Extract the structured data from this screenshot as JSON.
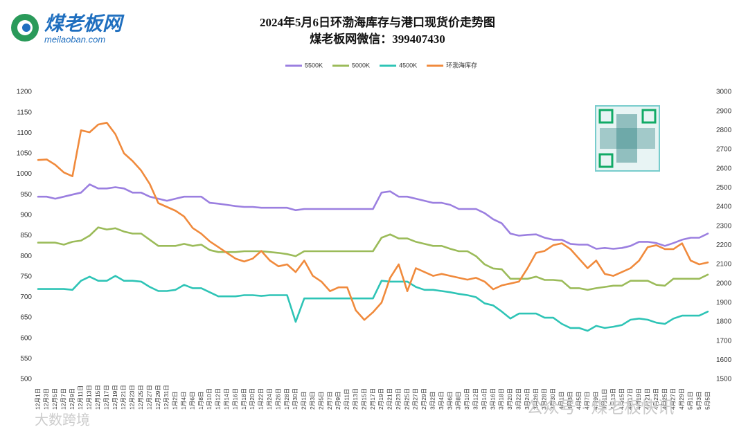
{
  "logo": {
    "name": "煤老板网",
    "site": "meilaoban.com"
  },
  "watermarks": [
    "大数跨境",
    "公众号 · 煤老板快讯"
  ],
  "chart_data": {
    "type": "line",
    "title": "2024年5月6日环渤海库存与港口现货价走势图",
    "subtitle": "煤老板网微信：399407430",
    "legend": "top",
    "grid": false,
    "categories": [
      "12月1日",
      "12月3日",
      "12月5日",
      "12月7日",
      "12月9日",
      "12月11日",
      "12月13日",
      "12月15日",
      "12月17日",
      "12月19日",
      "12月21日",
      "12月23日",
      "12月25日",
      "12月27日",
      "12月29日",
      "12月31日",
      "1月2日",
      "1月4日",
      "1月6日",
      "1月8日",
      "1月10日",
      "1月12日",
      "1月14日",
      "1月16日",
      "1月18日",
      "1月20日",
      "1月22日",
      "1月24日",
      "1月26日",
      "1月28日",
      "1月30日",
      "2月1日",
      "2月3日",
      "2月5日",
      "2月7日",
      "2月9日",
      "2月11日",
      "2月13日",
      "2月15日",
      "2月17日",
      "2月19日",
      "2月21日",
      "2月23日",
      "2月25日",
      "2月27日",
      "2月29日",
      "3月2日",
      "3月4日",
      "3月6日",
      "3月8日",
      "3月10日",
      "3月12日",
      "3月14日",
      "3月16日",
      "3月18日",
      "3月20日",
      "3月22日",
      "3月24日",
      "3月26日",
      "3月28日",
      "3月30日",
      "4月1日",
      "4月3日",
      "4月5日",
      "4月7日",
      "4月9日",
      "4月11日",
      "4月13日",
      "4月15日",
      "4月17日",
      "4月19日",
      "4月21日",
      "4月23日",
      "4月25日",
      "4月27日",
      "4月29日",
      "5月1日",
      "5月3日",
      "5月5日"
    ],
    "ylim": [
      500,
      1200
    ],
    "yticks": [
      500,
      550,
      600,
      650,
      700,
      750,
      800,
      850,
      900,
      950,
      1000,
      1050,
      1100,
      1150,
      1200
    ],
    "y2lim": [
      1500,
      3000
    ],
    "y2ticks": [
      1500,
      1600,
      1700,
      1800,
      1900,
      2000,
      2100,
      2200,
      2300,
      2400,
      2500,
      2600,
      2700,
      2800,
      2900,
      3000
    ],
    "series": [
      {
        "name": "5500K",
        "color": "#9b7fe0",
        "values": [
          945,
          945,
          940,
          945,
          950,
          955,
          975,
          965,
          965,
          968,
          965,
          955,
          955,
          945,
          940,
          935,
          940,
          945,
          945,
          945,
          930,
          928,
          925,
          922,
          920,
          920,
          918,
          918,
          918,
          918,
          912,
          915,
          915,
          915,
          915,
          915,
          915,
          915,
          915,
          915,
          955,
          958,
          945,
          945,
          940,
          935,
          930,
          930,
          925,
          915,
          915,
          915,
          905,
          890,
          880,
          855,
          850,
          852,
          853,
          845,
          840,
          840,
          830,
          828,
          828,
          818,
          820,
          818,
          820,
          825,
          835,
          835,
          832,
          825,
          832,
          840,
          845,
          845,
          855
        ]
      },
      {
        "name": "5000K",
        "color": "#9bbb59",
        "values": [
          833,
          833,
          833,
          828,
          835,
          838,
          850,
          870,
          865,
          868,
          860,
          855,
          855,
          840,
          825,
          825,
          825,
          830,
          825,
          828,
          815,
          810,
          810,
          810,
          812,
          812,
          812,
          810,
          808,
          805,
          800,
          812,
          812,
          812,
          812,
          812,
          812,
          812,
          812,
          812,
          845,
          853,
          843,
          843,
          835,
          830,
          825,
          825,
          818,
          812,
          812,
          800,
          780,
          770,
          768,
          745,
          745,
          745,
          750,
          742,
          742,
          740,
          722,
          722,
          718,
          722,
          725,
          728,
          728,
          740,
          740,
          740,
          730,
          728,
          745,
          745,
          745,
          745,
          755
        ]
      },
      {
        "name": "4500K",
        "color": "#2ec4b6",
        "values": [
          720,
          720,
          720,
          720,
          718,
          740,
          750,
          740,
          740,
          752,
          740,
          740,
          738,
          725,
          715,
          715,
          718,
          730,
          722,
          722,
          712,
          702,
          702,
          702,
          705,
          705,
          703,
          705,
          705,
          705,
          640,
          697,
          697,
          697,
          697,
          697,
          697,
          697,
          697,
          697,
          740,
          738,
          738,
          738,
          725,
          718,
          718,
          715,
          712,
          708,
          705,
          700,
          685,
          680,
          665,
          648,
          660,
          660,
          660,
          650,
          650,
          635,
          625,
          625,
          618,
          630,
          625,
          628,
          632,
          645,
          648,
          645,
          638,
          635,
          648,
          655,
          655,
          655,
          665
        ]
      },
      {
        "name": "环渤海库存",
        "color": "#f08a3c",
        "axis": "y2",
        "values": [
          2645,
          2648,
          2620,
          2580,
          2560,
          2800,
          2790,
          2830,
          2840,
          2780,
          2680,
          2640,
          2590,
          2520,
          2420,
          2400,
          2380,
          2350,
          2290,
          2260,
          2220,
          2190,
          2160,
          2130,
          2115,
          2130,
          2170,
          2120,
          2090,
          2100,
          2060,
          2120,
          2040,
          2010,
          1960,
          1980,
          1980,
          1860,
          1810,
          1850,
          1900,
          2030,
          2100,
          1960,
          2080,
          2060,
          2040,
          2050,
          2040,
          2030,
          2020,
          2030,
          2010,
          1970,
          1990,
          2000,
          2010,
          2080,
          2160,
          2170,
          2200,
          2210,
          2180,
          2130,
          2080,
          2120,
          2050,
          2040,
          2060,
          2080,
          2120,
          2190,
          2200,
          2180,
          2180,
          2210,
          2120,
          2100,
          2110
        ]
      }
    ]
  }
}
